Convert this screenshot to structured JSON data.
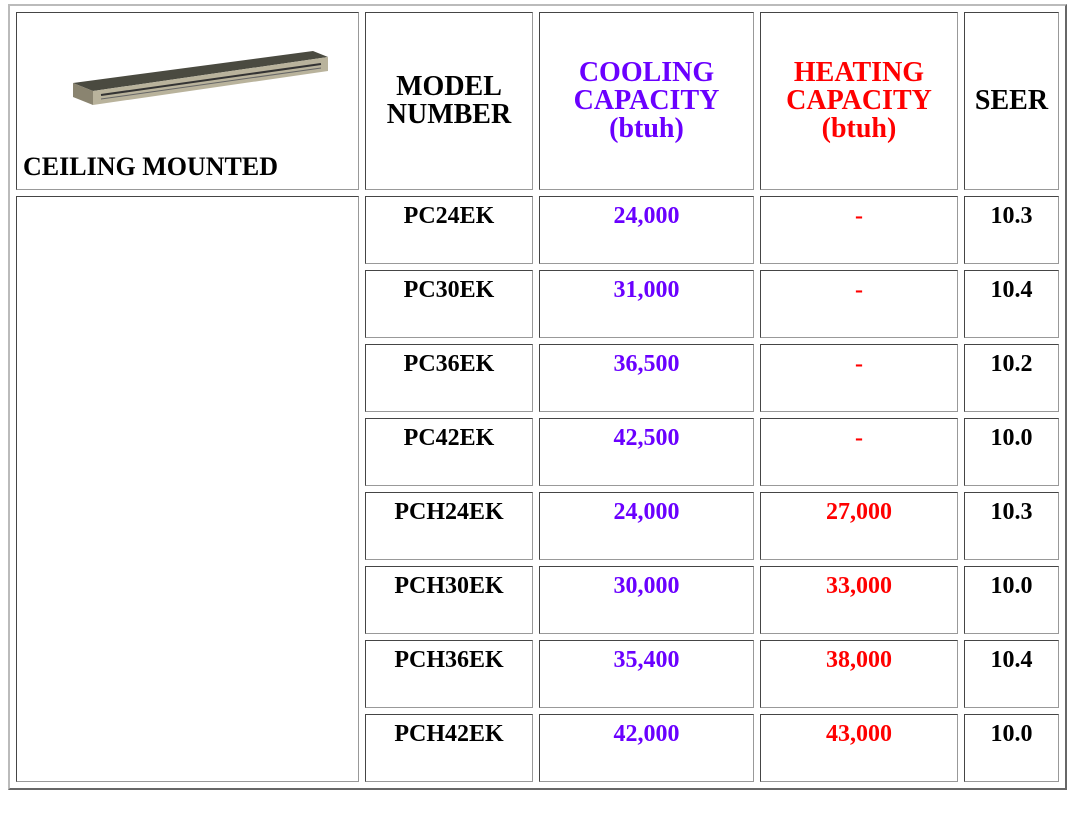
{
  "header": {
    "category": "CEILING MOUNTED",
    "model": [
      "MODEL",
      "NUMBER"
    ],
    "cooling": [
      "COOLING",
      "CAPACITY",
      "(btuh)"
    ],
    "heating": [
      "HEATING",
      "CAPACITY",
      "(btuh)"
    ],
    "seer": "SEER"
  },
  "rows": [
    [
      "PC24EK",
      "24,000",
      "-",
      "10.3"
    ],
    [
      "PC30EK",
      "31,000",
      "-",
      "10.4"
    ],
    [
      "PC36EK",
      "36,500",
      "-",
      "10.2"
    ],
    [
      "PC42EK",
      "42,500",
      "-",
      "10.0"
    ],
    [
      "PCH24EK",
      "24,000",
      "27,000",
      "10.3"
    ],
    [
      "PCH30EK",
      "30,000",
      "33,000",
      "10.0"
    ],
    [
      "PCH36EK",
      "35,400",
      "38,000",
      "10.4"
    ],
    [
      "PCH42EK",
      "42,000",
      "43,000",
      "10.0"
    ]
  ]
}
